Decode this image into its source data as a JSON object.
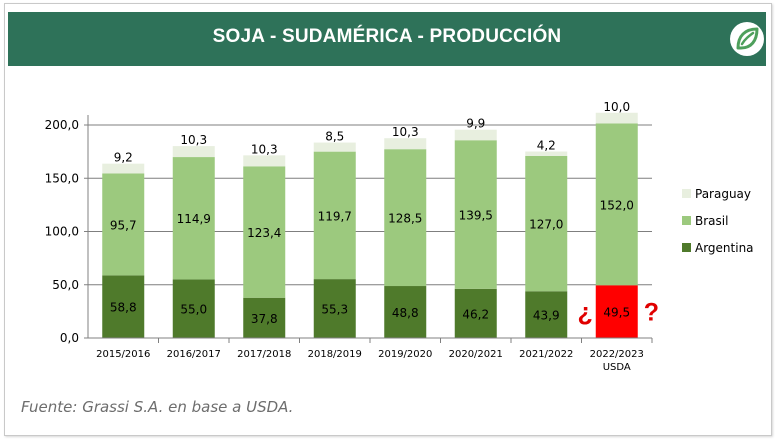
{
  "header": {
    "title": "SOJA - SUDAMÉRICA - PRODUCCIÓN"
  },
  "footer": {
    "source": "Fuente: Grassi S.A. en base a USDA."
  },
  "chart_data": {
    "type": "bar",
    "stacked": true,
    "title": "SOJA - SUDAMÉRICA - PRODUCCIÓN",
    "categories": [
      "2015/2016",
      "2016/2017",
      "2017/2018",
      "2018/2019",
      "2019/2020",
      "2020/2021",
      "2021/2022",
      "2022/2023"
    ],
    "category_sublabels": [
      "",
      "",
      "",
      "",
      "",
      "",
      "",
      "USDA"
    ],
    "series": [
      {
        "name": "Argentina",
        "color": "#4f7a2b",
        "values": [
          58.8,
          55.0,
          37.8,
          55.3,
          48.8,
          46.2,
          43.9,
          49.5
        ],
        "labels": [
          "58,8",
          "55,0",
          "37,8",
          "55,3",
          "48,8",
          "46,2",
          "43,9",
          "49,5"
        ]
      },
      {
        "name": "Brasil",
        "color": "#9cc97e",
        "values": [
          95.7,
          114.9,
          123.4,
          119.7,
          128.5,
          139.5,
          127.0,
          152.0
        ],
        "labels": [
          "95,7",
          "114,9",
          "123,4",
          "119,7",
          "128,5",
          "139,5",
          "127,0",
          "152,0"
        ]
      },
      {
        "name": "Paraguay",
        "color": "#e8efdf",
        "values": [
          9.2,
          10.3,
          10.3,
          8.5,
          10.3,
          9.9,
          4.2,
          10.0
        ],
        "labels": [
          "9,2",
          "10,3",
          "10,3",
          "8,5",
          "10,3",
          "9,9",
          "4,2",
          "10,0"
        ]
      }
    ],
    "highlight": {
      "category_index": 7,
      "series": "Argentina",
      "color": "#ff0000",
      "marker_left": "¿",
      "marker_right": "?"
    },
    "yticks": [
      "0,0",
      "50,0",
      "100,0",
      "150,0",
      "200,0"
    ],
    "ytick_values": [
      0,
      50,
      100,
      150,
      200
    ],
    "ylim": [
      0,
      200
    ],
    "grid": true,
    "legend": {
      "placement": "right",
      "entries": [
        "Paraguay",
        "Brasil",
        "Argentina"
      ]
    },
    "xlabel": "",
    "ylabel": ""
  },
  "colors": {
    "banner": "#2e7259",
    "logo_bg": "#ffffff",
    "logo_fg": "#4ea05c",
    "axis": "#808080",
    "grid": "#7f7f7f",
    "highlight_text": "#e00000"
  },
  "icons": {
    "logo": "leaf-logo-icon"
  }
}
